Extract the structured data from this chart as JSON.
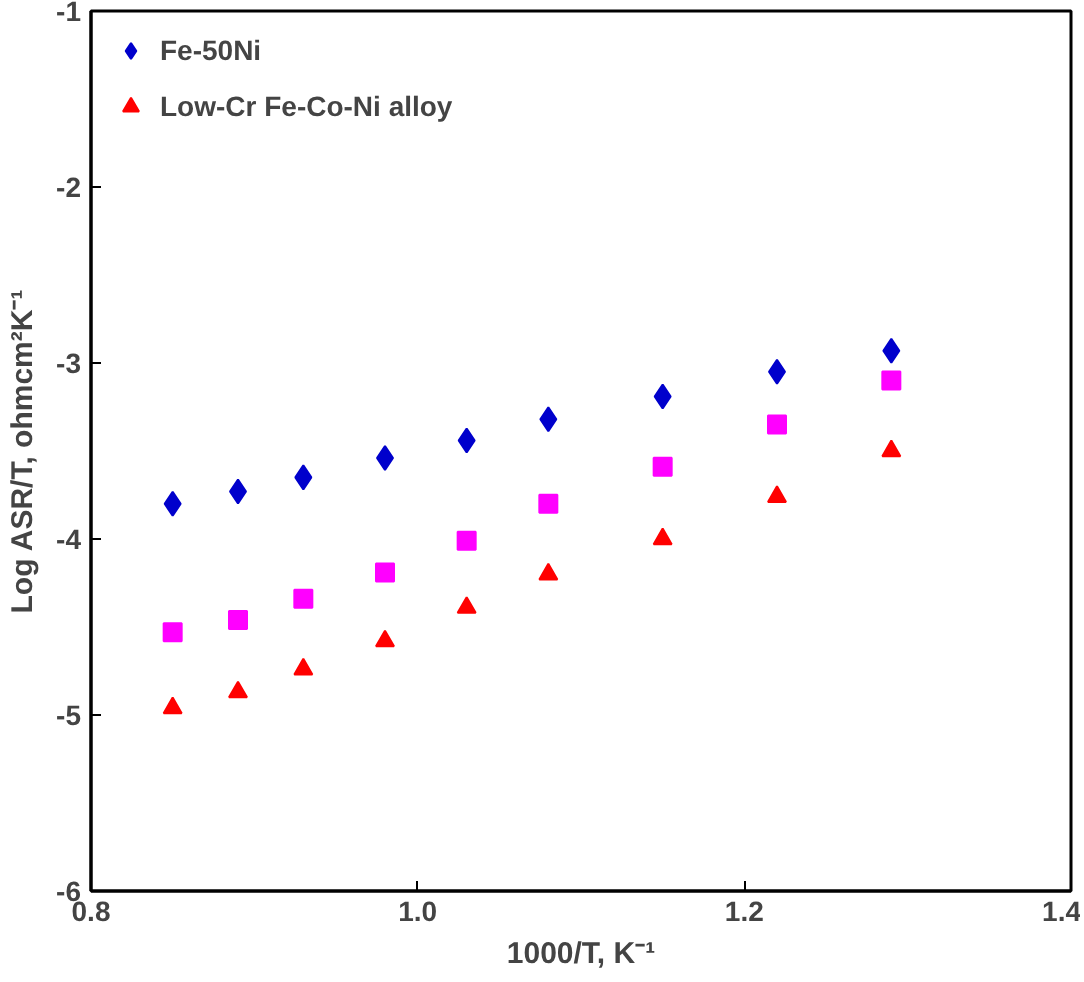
{
  "chart_data": {
    "type": "scatter",
    "xlabel": "1000/T, K⁻¹",
    "ylabel": "Log ASR/T, ohmcm²K⁻¹",
    "xlim": [
      0.8,
      1.4
    ],
    "ylim": [
      -6,
      -1
    ],
    "xticks": [
      {
        "value": 0.8,
        "label": "0.8"
      },
      {
        "value": 1.0,
        "label": "1.0"
      },
      {
        "value": 1.2,
        "label": "1.2"
      },
      {
        "value": 1.4,
        "label": "1.4"
      }
    ],
    "yticks": [
      -6,
      -5,
      -4,
      -3,
      -2,
      -1
    ],
    "x": [
      0.85,
      0.89,
      0.93,
      0.98,
      1.03,
      1.08,
      1.15,
      1.22,
      1.29
    ],
    "series": [
      {
        "name": "Fe-50Ni",
        "color": "#0000cc",
        "marker": "diamond",
        "values": [
          -3.8,
          -3.73,
          -3.65,
          -3.54,
          -3.44,
          -3.32,
          -3.19,
          -3.05,
          -2.93
        ]
      },
      {
        "color": "#ff00ff",
        "marker": "square",
        "values": [
          -4.53,
          -4.46,
          -4.34,
          -4.19,
          -4.01,
          -3.8,
          -3.59,
          -3.35,
          -3.1
        ]
      },
      {
        "name": "Low-Cr Fe-Co-Ni alloy",
        "color": "#ff0000",
        "marker": "triangle",
        "values": [
          -4.96,
          -4.87,
          -4.74,
          -4.58,
          -4.39,
          -4.2,
          -4.0,
          -3.76,
          -3.5
        ]
      }
    ],
    "grid": false,
    "legend": "top left"
  }
}
